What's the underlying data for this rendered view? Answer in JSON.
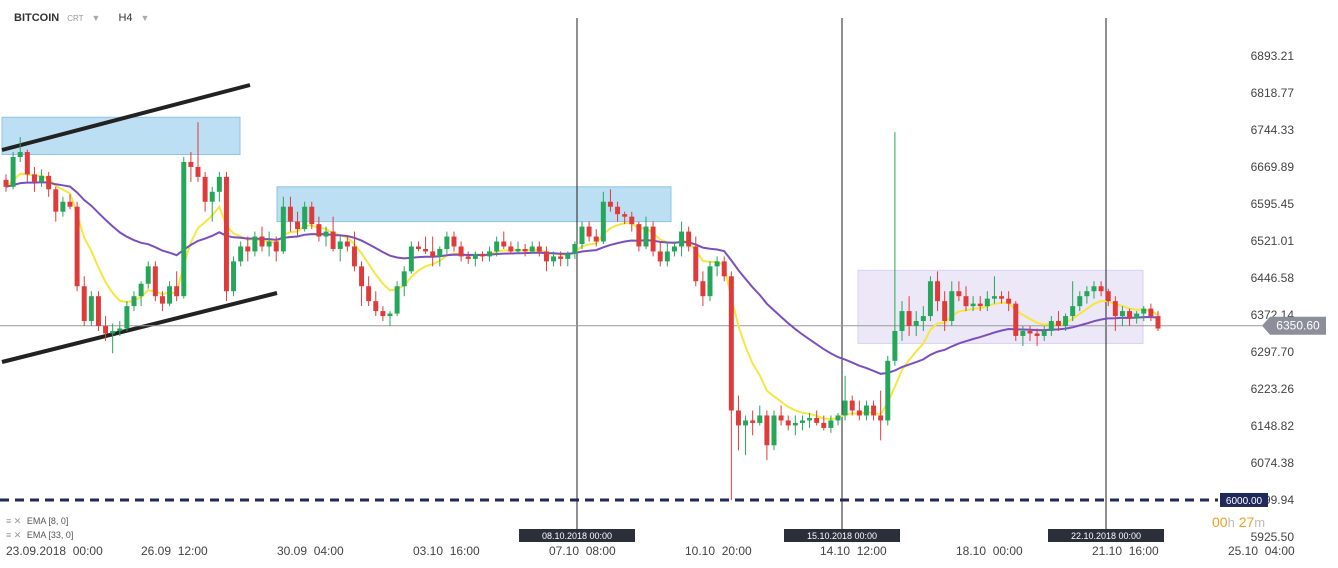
{
  "header": {
    "symbol": "BITCOIN",
    "sub": "CRT",
    "timeframe": "H4"
  },
  "indicators": [
    {
      "label": "EMA [8, 0]",
      "color": "#f5e642"
    },
    {
      "label": "EMA [33, 0]",
      "color": "#7b4fc0"
    }
  ],
  "timer": {
    "hours": "00",
    "h": "h",
    "minutes": "27",
    "m": "m"
  },
  "colors": {
    "up": "#26a65b",
    "down": "#e03b3b",
    "zone": "#bcdff3",
    "range": "#ece8f7",
    "ema_fast": "#f5e642",
    "ema_slow": "#7b4fc0",
    "support": "#1f2a5a"
  },
  "chart_data": {
    "type": "candlestick",
    "ylim": [
      5925.5,
      6925
    ],
    "y_ticks": [
      6893.21,
      6818.77,
      6744.33,
      6669.89,
      6595.45,
      6521.01,
      6446.58,
      6372.14,
      6297.7,
      6223.26,
      6148.82,
      6074.38,
      5999.94,
      5925.5
    ],
    "x_labels": [
      "23.09.2018  00:00",
      "26.09  12:00",
      "30.09  04:00",
      "03.10  16:00",
      "07.10  08:00",
      "10.10  20:00",
      "14.10  12:00",
      "18.10  00:00",
      "21.10  16:00",
      "25.10  04:00"
    ],
    "current_price": 6350.6,
    "support_level": 6000.0,
    "current_price_label": "6350.60",
    "support_label": "6000.00",
    "event_lines": [
      {
        "label": "08.10.2018 00:00"
      },
      {
        "label": "15.10.2018 00:00"
      },
      {
        "label": "22.10.2018 00:00"
      }
    ],
    "candles": [
      [
        6644,
        6655,
        6620,
        6630
      ],
      [
        6630,
        6700,
        6625,
        6690
      ],
      [
        6690,
        6730,
        6680,
        6700
      ],
      [
        6700,
        6705,
        6640,
        6655
      ],
      [
        6655,
        6670,
        6620,
        6640
      ],
      [
        6640,
        6665,
        6630,
        6652
      ],
      [
        6652,
        6660,
        6610,
        6625
      ],
      [
        6625,
        6630,
        6560,
        6580
      ],
      [
        6580,
        6610,
        6570,
        6600
      ],
      [
        6600,
        6615,
        6585,
        6590
      ],
      [
        6590,
        6600,
        6420,
        6430
      ],
      [
        6430,
        6450,
        6350,
        6360
      ],
      [
        6360,
        6420,
        6350,
        6410
      ],
      [
        6410,
        6420,
        6340,
        6350
      ],
      [
        6350,
        6370,
        6320,
        6335
      ],
      [
        6335,
        6355,
        6295,
        6340
      ],
      [
        6340,
        6360,
        6330,
        6345
      ],
      [
        6345,
        6400,
        6340,
        6390
      ],
      [
        6390,
        6420,
        6380,
        6410
      ],
      [
        6410,
        6440,
        6390,
        6435
      ],
      [
        6435,
        6480,
        6425,
        6470
      ],
      [
        6470,
        6480,
        6400,
        6410
      ],
      [
        6410,
        6420,
        6380,
        6395
      ],
      [
        6395,
        6440,
        6390,
        6430
      ],
      [
        6430,
        6460,
        6400,
        6410
      ],
      [
        6410,
        6690,
        6405,
        6680
      ],
      [
        6680,
        6700,
        6640,
        6670
      ],
      [
        6670,
        6760,
        6640,
        6650
      ],
      [
        6650,
        6660,
        6580,
        6600
      ],
      [
        6600,
        6630,
        6560,
        6620
      ],
      [
        6620,
        6660,
        6600,
        6650
      ],
      [
        6650,
        6660,
        6400,
        6420
      ],
      [
        6420,
        6490,
        6410,
        6480
      ],
      [
        6480,
        6520,
        6470,
        6510
      ],
      [
        6510,
        6530,
        6480,
        6500
      ],
      [
        6500,
        6540,
        6490,
        6530
      ],
      [
        6530,
        6550,
        6500,
        6510
      ],
      [
        6510,
        6540,
        6490,
        6520
      ],
      [
        6520,
        6530,
        6480,
        6500
      ],
      [
        6500,
        6610,
        6495,
        6590
      ],
      [
        6590,
        6610,
        6540,
        6560
      ],
      [
        6560,
        6580,
        6530,
        6545
      ],
      [
        6545,
        6600,
        6540,
        6590
      ],
      [
        6590,
        6600,
        6545,
        6555
      ],
      [
        6555,
        6570,
        6520,
        6530
      ],
      [
        6530,
        6550,
        6510,
        6540
      ],
      [
        6540,
        6570,
        6500,
        6505
      ],
      [
        6505,
        6530,
        6480,
        6520
      ],
      [
        6520,
        6530,
        6500,
        6510
      ],
      [
        6510,
        6540,
        6460,
        6470
      ],
      [
        6470,
        6480,
        6390,
        6430
      ],
      [
        6430,
        6450,
        6390,
        6400
      ],
      [
        6400,
        6420,
        6370,
        6380
      ],
      [
        6380,
        6390,
        6360,
        6370
      ],
      [
        6370,
        6380,
        6350,
        6375
      ],
      [
        6375,
        6440,
        6370,
        6430
      ],
      [
        6430,
        6470,
        6410,
        6460
      ],
      [
        6460,
        6520,
        6455,
        6510
      ],
      [
        6510,
        6520,
        6500,
        6505
      ],
      [
        6505,
        6530,
        6495,
        6500
      ],
      [
        6500,
        6530,
        6470,
        6490
      ],
      [
        6490,
        6510,
        6470,
        6505
      ],
      [
        6505,
        6540,
        6495,
        6530
      ],
      [
        6530,
        6540,
        6500,
        6510
      ],
      [
        6510,
        6520,
        6480,
        6490
      ],
      [
        6490,
        6500,
        6475,
        6485
      ],
      [
        6485,
        6500,
        6470,
        6495
      ],
      [
        6495,
        6500,
        6480,
        6490
      ],
      [
        6490,
        6510,
        6480,
        6500
      ],
      [
        6500,
        6530,
        6490,
        6520
      ],
      [
        6520,
        6540,
        6505,
        6510
      ],
      [
        6510,
        6520,
        6495,
        6500
      ],
      [
        6500,
        6520,
        6495,
        6505
      ],
      [
        6505,
        6515,
        6490,
        6500
      ],
      [
        6500,
        6520,
        6495,
        6510
      ],
      [
        6510,
        6520,
        6490,
        6500
      ],
      [
        6500,
        6510,
        6460,
        6480
      ],
      [
        6480,
        6500,
        6470,
        6490
      ],
      [
        6490,
        6500,
        6470,
        6485
      ],
      [
        6485,
        6500,
        6470,
        6495
      ],
      [
        6495,
        6520,
        6485,
        6515
      ],
      [
        6515,
        6560,
        6505,
        6550
      ],
      [
        6550,
        6560,
        6520,
        6530
      ],
      [
        6530,
        6545,
        6510,
        6520
      ],
      [
        6520,
        6620,
        6515,
        6600
      ],
      [
        6600,
        6625,
        6580,
        6590
      ],
      [
        6590,
        6600,
        6560,
        6575
      ],
      [
        6575,
        6580,
        6555,
        6570
      ],
      [
        6570,
        6580,
        6540,
        6555
      ],
      [
        6555,
        6560,
        6500,
        6510
      ],
      [
        6510,
        6570,
        6505,
        6550
      ],
      [
        6550,
        6560,
        6490,
        6500
      ],
      [
        6500,
        6520,
        6470,
        6480
      ],
      [
        6480,
        6520,
        6470,
        6500
      ],
      [
        6500,
        6520,
        6490,
        6510
      ],
      [
        6510,
        6560,
        6490,
        6540
      ],
      [
        6540,
        6550,
        6500,
        6510
      ],
      [
        6510,
        6530,
        6430,
        6440
      ],
      [
        6440,
        6460,
        6390,
        6410
      ],
      [
        6410,
        6480,
        6400,
        6470
      ],
      [
        6470,
        6490,
        6450,
        6480
      ],
      [
        6480,
        6490,
        6440,
        6450
      ],
      [
        6450,
        6460,
        6000,
        6180
      ],
      [
        6180,
        6210,
        6100,
        6150
      ],
      [
        6150,
        6170,
        6090,
        6160
      ],
      [
        6160,
        6180,
        6130,
        6155
      ],
      [
        6155,
        6190,
        6150,
        6170
      ],
      [
        6170,
        6180,
        6080,
        6110
      ],
      [
        6110,
        6180,
        6100,
        6170
      ],
      [
        6170,
        6190,
        6150,
        6160
      ],
      [
        6160,
        6170,
        6140,
        6150
      ],
      [
        6150,
        6170,
        6130,
        6155
      ],
      [
        6155,
        6170,
        6140,
        6160
      ],
      [
        6160,
        6175,
        6145,
        6165
      ],
      [
        6165,
        6180,
        6150,
        6155
      ],
      [
        6155,
        6170,
        6140,
        6145
      ],
      [
        6145,
        6170,
        6135,
        6160
      ],
      [
        6160,
        6175,
        6150,
        6170
      ],
      [
        6170,
        6250,
        6160,
        6200
      ],
      [
        6200,
        6210,
        6170,
        6180
      ],
      [
        6180,
        6200,
        6160,
        6170
      ],
      [
        6170,
        6200,
        6160,
        6190
      ],
      [
        6190,
        6200,
        6160,
        6170
      ],
      [
        6170,
        6220,
        6120,
        6160
      ],
      [
        6160,
        6290,
        6150,
        6280
      ],
      [
        6280,
        6740,
        6270,
        6340
      ],
      [
        6340,
        6400,
        6320,
        6380
      ],
      [
        6380,
        6410,
        6330,
        6350
      ],
      [
        6350,
        6380,
        6330,
        6360
      ],
      [
        6360,
        6390,
        6340,
        6370
      ],
      [
        6370,
        6450,
        6360,
        6440
      ],
      [
        6440,
        6460,
        6380,
        6400
      ],
      [
        6400,
        6420,
        6340,
        6360
      ],
      [
        6360,
        6440,
        6350,
        6420
      ],
      [
        6420,
        6440,
        6400,
        6410
      ],
      [
        6410,
        6430,
        6380,
        6390
      ],
      [
        6390,
        6410,
        6380,
        6395
      ],
      [
        6395,
        6410,
        6380,
        6390
      ],
      [
        6390,
        6420,
        6380,
        6405
      ],
      [
        6405,
        6450,
        6395,
        6410
      ],
      [
        6410,
        6420,
        6395,
        6405
      ],
      [
        6405,
        6420,
        6380,
        6395
      ],
      [
        6395,
        6400,
        6320,
        6330
      ],
      [
        6330,
        6350,
        6310,
        6340
      ],
      [
        6340,
        6350,
        6320,
        6335
      ],
      [
        6335,
        6345,
        6310,
        6330
      ],
      [
        6330,
        6350,
        6320,
        6340
      ],
      [
        6340,
        6370,
        6330,
        6360
      ],
      [
        6360,
        6380,
        6340,
        6350
      ],
      [
        6350,
        6375,
        6340,
        6370
      ],
      [
        6370,
        6440,
        6360,
        6390
      ],
      [
        6390,
        6420,
        6380,
        6410
      ],
      [
        6410,
        6430,
        6395,
        6420
      ],
      [
        6420,
        6440,
        6405,
        6430
      ],
      [
        6430,
        6440,
        6410,
        6420
      ],
      [
        6420,
        6425,
        6390,
        6400
      ],
      [
        6400,
        6410,
        6340,
        6370
      ],
      [
        6370,
        6390,
        6350,
        6380
      ],
      [
        6380,
        6385,
        6350,
        6365
      ],
      [
        6365,
        6380,
        6355,
        6375
      ],
      [
        6375,
        6390,
        6360,
        6385
      ],
      [
        6385,
        6395,
        6360,
        6370
      ],
      [
        6370,
        6380,
        6340,
        6345
      ]
    ]
  }
}
